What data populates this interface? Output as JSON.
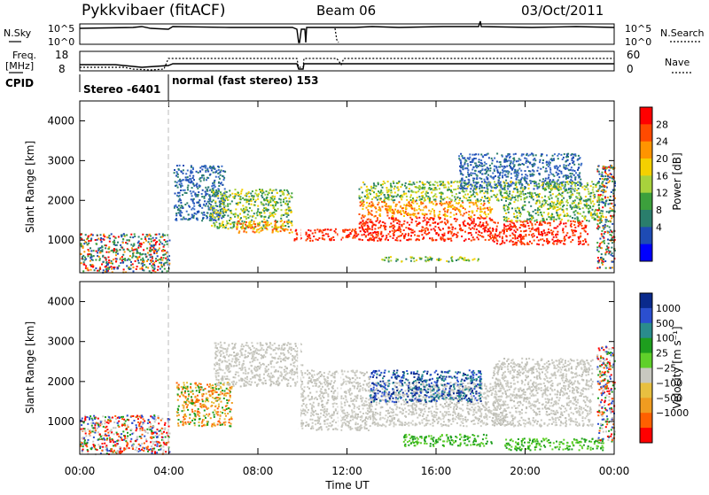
{
  "header": {
    "radar_title": "Pykkvibaer (fitACF)",
    "beam": "Beam 06",
    "date": "03/Oct/2011"
  },
  "noise_panel": {
    "left_label": "N.Sky",
    "right_label": "N.Search",
    "left_ticks": [
      "10^5",
      "10^0"
    ],
    "right_ticks": [
      "10^5",
      "10^0"
    ]
  },
  "freq_panel": {
    "left_label_line1": "Freq.",
    "left_label_line2": "[MHz]",
    "right_label": "Nave",
    "left_ticks": [
      "18",
      "8"
    ],
    "right_ticks": [
      "60",
      "0"
    ]
  },
  "cpid": {
    "label": "CPID",
    "segments": [
      {
        "text": "Stereo -6401",
        "start_hour": 0,
        "end_hour": 4
      },
      {
        "text": "normal (fast stereo) 153",
        "start_hour": 4,
        "end_hour": 24
      }
    ]
  },
  "chart_data": [
    {
      "type": "heatmap",
      "name": "power",
      "ylabel": "Slant Range [km]",
      "xlabel": "",
      "xlim_hours": [
        0,
        24
      ],
      "ylim": [
        180,
        4500
      ],
      "yticks": [
        1000,
        2000,
        3000,
        4000
      ],
      "colorbar": {
        "label": "Power [dB]",
        "ticks": [
          "28",
          "24",
          "20",
          "16",
          "12",
          "8",
          "4"
        ],
        "colors": [
          "#ff0000",
          "#ff4a00",
          "#ff9400",
          "#f4d000",
          "#a8d23c",
          "#3ca03c",
          "#2a7e6c",
          "#1e4bb4",
          "#0000ff"
        ]
      }
    },
    {
      "type": "heatmap",
      "name": "velocity",
      "ylabel": "Slant Range [km]",
      "xlabel": "Time UT",
      "xlim_hours": [
        0,
        24
      ],
      "ylim": [
        180,
        4500
      ],
      "yticks": [
        1000,
        2000,
        3000,
        4000
      ],
      "xticks": [
        "00:00",
        "04:00",
        "08:00",
        "12:00",
        "16:00",
        "20:00",
        "00:00"
      ],
      "colorbar": {
        "label": "Velocity [m s⁻¹]",
        "ticks": [
          "1000",
          "500",
          "100",
          "25",
          "−25",
          "−100",
          "−500",
          "−1000"
        ],
        "colors": [
          "#0a2a8c",
          "#2b4fcf",
          "#2a8c8c",
          "#1e9e1e",
          "#5fd02a",
          "#c8c8c0",
          "#e8c040",
          "#f09c20",
          "#ff6000",
          "#ff0000"
        ]
      }
    }
  ]
}
